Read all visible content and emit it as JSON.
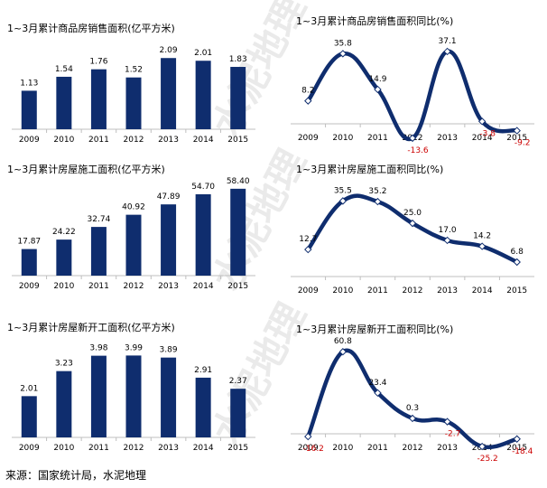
{
  "source": "来源：国家统计局，水泥地理",
  "watermark": "水泥地理",
  "colors": {
    "bar": "#0f2d6e",
    "line": "#0f2d6e",
    "marker_fill": "#ffffff",
    "negative_label": "#cc0000",
    "axis": "#bfbfbf"
  },
  "chart_data": [
    {
      "type": "bar",
      "title": "1~3月累计商品房销售面积(亿平方米)",
      "categories": [
        "2009",
        "2010",
        "2011",
        "2012",
        "2013",
        "2014",
        "2015"
      ],
      "values": [
        1.13,
        1.54,
        1.76,
        1.52,
        2.09,
        2.01,
        1.83
      ],
      "labels": [
        "1.13",
        "1.54",
        "1.76",
        "1.52",
        "2.09",
        "2.01",
        "1.83"
      ],
      "ylim": [
        0,
        2.6
      ]
    },
    {
      "type": "line",
      "title": "1~3月累计商品房销售面积同比(%)",
      "categories": [
        "2009",
        "2010",
        "2011",
        "2012",
        "2013",
        "2014",
        "2015"
      ],
      "values": [
        8.2,
        35.8,
        14.9,
        -13.6,
        37.1,
        -3.8,
        -9.2
      ],
      "labels": [
        "8.2",
        "35.8",
        "14.9",
        "-13.6",
        "37.1",
        "-3.8",
        "-9.2"
      ],
      "ylim": [
        -20,
        45
      ]
    },
    {
      "type": "bar",
      "title": "1~3月累计房屋施工面积(亿平方米)",
      "categories": [
        "2009",
        "2010",
        "2011",
        "2012",
        "2013",
        "2014",
        "2015"
      ],
      "values": [
        17.87,
        24.22,
        32.74,
        40.92,
        47.89,
        54.7,
        58.4
      ],
      "labels": [
        "17.87",
        "24.22",
        "32.74",
        "40.92",
        "47.89",
        "54.70",
        "58.40"
      ],
      "ylim": [
        0,
        65
      ]
    },
    {
      "type": "line",
      "title": "1~3月累计房屋施工面积同比(%)",
      "categories": [
        "2009",
        "2010",
        "2011",
        "2012",
        "2013",
        "2014",
        "2015"
      ],
      "values": [
        12.7,
        35.5,
        35.2,
        25.0,
        17.0,
        14.2,
        6.8
      ],
      "labels": [
        "12.7",
        "35.5",
        "35.2",
        "25.0",
        "17.0",
        "14.2",
        "6.8"
      ],
      "ylim": [
        0,
        45
      ]
    },
    {
      "type": "bar",
      "title": "1~3月累计房屋新开工面积(亿平方米)",
      "categories": [
        "2009",
        "2010",
        "2011",
        "2012",
        "2013",
        "2014",
        "2015"
      ],
      "values": [
        2.01,
        3.23,
        3.98,
        3.99,
        3.89,
        2.91,
        2.37
      ],
      "labels": [
        "2.01",
        "3.23",
        "3.98",
        "3.99",
        "3.89",
        "2.91",
        "2.37"
      ],
      "ylim": [
        0,
        4.8
      ]
    },
    {
      "type": "line",
      "title": "1~3月累计房屋新开工面积同比(%)",
      "categories": [
        "2009",
        "2010",
        "2011",
        "2012",
        "2013",
        "2014",
        "2015"
      ],
      "values": [
        -16.2,
        60.8,
        23.4,
        0.3,
        -2.7,
        -25.2,
        -18.4
      ],
      "labels": [
        "-16.2",
        "60.8",
        "23.4",
        "0.3",
        "-2.7",
        "-25.2",
        "-18.4"
      ],
      "ylim": [
        -35,
        70
      ]
    }
  ]
}
